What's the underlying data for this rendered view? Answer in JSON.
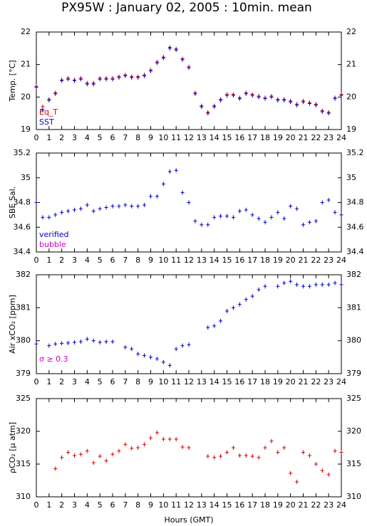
{
  "chart_data": [
    {
      "type": "scatter",
      "title": "PX95W : January 02, 2005 : 10min. mean",
      "ylabel": "Temp. [°C]",
      "xlim": [
        0,
        24
      ],
      "xticks": [
        0,
        1,
        2,
        3,
        4,
        5,
        6,
        7,
        8,
        9,
        10,
        11,
        12,
        13,
        14,
        15,
        16,
        17,
        18,
        19,
        20,
        21,
        22,
        23,
        24
      ],
      "ylim": [
        19,
        22
      ],
      "yticks": [
        19,
        20,
        21,
        22
      ],
      "x": [
        0,
        0.5,
        1,
        1.5,
        2,
        2.5,
        3,
        3.5,
        4,
        4.5,
        5,
        5.5,
        6,
        6.5,
        7,
        7.5,
        8,
        8.5,
        9,
        9.5,
        10,
        10.5,
        11,
        11.5,
        12,
        12.5,
        13,
        13.5,
        14,
        14.5,
        15,
        15.5,
        16,
        16.5,
        17,
        17.5,
        18,
        18.5,
        19,
        19.5,
        20,
        20.5,
        21,
        21.5,
        22,
        22.5,
        23,
        23.5,
        24
      ],
      "series": [
        {
          "name": "Eq_T",
          "color": "#dd0000",
          "values": [
            20.33,
            19.7,
            19.93,
            20.13,
            20.53,
            20.58,
            20.53,
            20.58,
            20.43,
            20.43,
            20.58,
            20.58,
            20.58,
            20.63,
            20.68,
            20.63,
            20.63,
            20.68,
            20.83,
            21.08,
            21.23,
            21.53,
            21.48,
            21.18,
            20.93,
            20.13,
            19.73,
            19.53,
            19.73,
            19.93,
            20.08,
            20.08,
            19.98,
            20.13,
            20.08,
            20.03,
            19.98,
            20.03,
            19.93,
            19.93,
            19.88,
            19.78,
            19.88,
            19.83,
            19.78,
            19.58,
            19.53,
            19.98,
            20.08
          ]
        },
        {
          "name": "SST",
          "color": "#0000cc",
          "values": [
            20.3,
            19.6,
            19.9,
            20.1,
            20.5,
            20.55,
            20.5,
            20.55,
            20.4,
            20.4,
            20.55,
            20.55,
            20.55,
            20.6,
            20.65,
            20.6,
            20.6,
            20.65,
            20.8,
            21.05,
            21.2,
            21.5,
            21.45,
            21.15,
            20.9,
            20.1,
            19.7,
            19.5,
            19.7,
            19.9,
            20.05,
            20.05,
            19.95,
            20.1,
            20.05,
            20.0,
            19.95,
            20.0,
            19.9,
            19.9,
            19.85,
            19.75,
            19.85,
            19.8,
            19.75,
            19.55,
            19.5,
            19.95,
            20.05
          ]
        }
      ]
    },
    {
      "type": "scatter",
      "ylabel": "SBE Sal.",
      "xlim": [
        0,
        24
      ],
      "xticks": [
        0,
        1,
        2,
        3,
        4,
        5,
        6,
        7,
        8,
        9,
        10,
        11,
        12,
        13,
        14,
        15,
        16,
        17,
        18,
        19,
        20,
        21,
        22,
        23,
        24
      ],
      "ylim": [
        34.4,
        35.2
      ],
      "yticks": [
        34.4,
        34.6,
        34.8,
        35,
        35.2
      ],
      "x": [
        0,
        0.5,
        1,
        1.5,
        2,
        2.5,
        3,
        3.5,
        4,
        4.5,
        5,
        5.5,
        6,
        6.5,
        7,
        7.5,
        8,
        8.5,
        9,
        9.5,
        10,
        10.5,
        11,
        11.5,
        12,
        12.5,
        13,
        13.5,
        14,
        14.5,
        15,
        15.5,
        16,
        16.5,
        17,
        17.5,
        18,
        18.5,
        19,
        19.5,
        20,
        20.5,
        21,
        21.5,
        22,
        22.5,
        23,
        23.5,
        24
      ],
      "series": [
        {
          "name": "verified",
          "color": "#0000cc",
          "values": [
            34.8,
            34.68,
            34.68,
            34.7,
            34.72,
            34.73,
            34.74,
            34.75,
            34.78,
            34.73,
            34.75,
            34.76,
            34.77,
            34.77,
            34.78,
            34.77,
            34.77,
            34.78,
            34.85,
            34.85,
            34.95,
            35.05,
            35.06,
            34.88,
            34.8,
            34.65,
            34.62,
            34.62,
            34.68,
            34.69,
            34.69,
            34.68,
            34.73,
            34.74,
            34.7,
            34.67,
            34.64,
            34.68,
            34.72,
            34.67,
            34.77,
            34.75,
            34.62,
            34.64,
            34.65,
            34.8,
            34.82,
            34.72,
            34.7
          ]
        },
        {
          "name": "bubble",
          "color": "#cc00cc",
          "values": []
        }
      ]
    },
    {
      "type": "scatter",
      "ylabel": "Air xCO₂ [ppm]",
      "xlim": [
        0,
        24
      ],
      "xticks": [
        0,
        1,
        2,
        3,
        4,
        5,
        6,
        7,
        8,
        9,
        10,
        11,
        12,
        13,
        14,
        15,
        16,
        17,
        18,
        19,
        20,
        21,
        22,
        23,
        24
      ],
      "ylim": [
        379,
        382
      ],
      "yticks": [
        379,
        380,
        381,
        382
      ],
      "x": [
        0,
        0.5,
        1,
        1.5,
        2,
        2.5,
        3,
        3.5,
        4,
        4.5,
        5,
        5.5,
        6,
        6.5,
        7,
        7.5,
        8,
        8.5,
        9,
        9.5,
        10,
        10.5,
        11,
        11.5,
        12,
        12.5,
        13,
        13.5,
        14,
        14.5,
        15,
        15.5,
        16,
        16.5,
        17,
        17.5,
        18,
        18.5,
        19,
        19.5,
        20,
        20.5,
        21,
        21.5,
        22,
        22.5,
        23,
        23.5,
        24
      ],
      "series": [
        {
          "name": "σ ≥ 0.3",
          "color": "#cc00cc",
          "values": []
        },
        {
          "color": "#0000cc",
          "values": [
            379.9,
            null,
            379.85,
            379.9,
            379.92,
            379.93,
            379.95,
            379.97,
            380.05,
            380.0,
            379.95,
            379.97,
            379.97,
            null,
            379.8,
            379.75,
            379.6,
            379.55,
            379.5,
            379.45,
            379.35,
            379.25,
            379.75,
            379.85,
            379.88,
            null,
            null,
            380.4,
            380.45,
            380.6,
            380.9,
            381.0,
            381.1,
            381.25,
            381.35,
            381.55,
            381.65,
            null,
            381.65,
            381.75,
            381.8,
            381.7,
            381.65,
            381.65,
            381.7,
            381.7,
            381.7,
            381.75,
            381.7
          ]
        }
      ]
    },
    {
      "type": "scatter",
      "ylabel": "ρCO₂ [μ atm]",
      "xlabel": "Hours (GMT)",
      "xlim": [
        0,
        24
      ],
      "xticks": [
        0,
        1,
        2,
        3,
        4,
        5,
        6,
        7,
        8,
        9,
        10,
        11,
        12,
        13,
        14,
        15,
        16,
        17,
        18,
        19,
        20,
        21,
        22,
        23,
        24
      ],
      "ylim": [
        310,
        325
      ],
      "yticks": [
        310,
        315,
        320,
        325
      ],
      "x": [
        0,
        0.5,
        1,
        1.5,
        2,
        2.5,
        3,
        3.5,
        4,
        4.5,
        5,
        5.5,
        6,
        6.5,
        7,
        7.5,
        8,
        8.5,
        9,
        9.5,
        10,
        10.5,
        11,
        11.5,
        12,
        12.5,
        13,
        13.5,
        14,
        14.5,
        15,
        15.5,
        16,
        16.5,
        17,
        17.5,
        18,
        18.5,
        19,
        19.5,
        20,
        20.5,
        21,
        21.5,
        22,
        22.5,
        23,
        23.5,
        24
      ],
      "series": [
        {
          "color": "#dd0000",
          "values": [
            null,
            null,
            null,
            314.3,
            316,
            316.8,
            316.3,
            316.5,
            317,
            315.2,
            316.2,
            315.5,
            316.5,
            317,
            318,
            317.4,
            317.5,
            318,
            319,
            319.8,
            318.8,
            318.8,
            318.8,
            317.6,
            317.5,
            null,
            null,
            316.2,
            316,
            316.2,
            316.8,
            317.5,
            316.3,
            316.3,
            316.2,
            316,
            317.5,
            318.5,
            316.8,
            317.5,
            313.6,
            312.3,
            316.8,
            316.3,
            315,
            314,
            313.4,
            317,
            316.8
          ]
        }
      ]
    }
  ]
}
